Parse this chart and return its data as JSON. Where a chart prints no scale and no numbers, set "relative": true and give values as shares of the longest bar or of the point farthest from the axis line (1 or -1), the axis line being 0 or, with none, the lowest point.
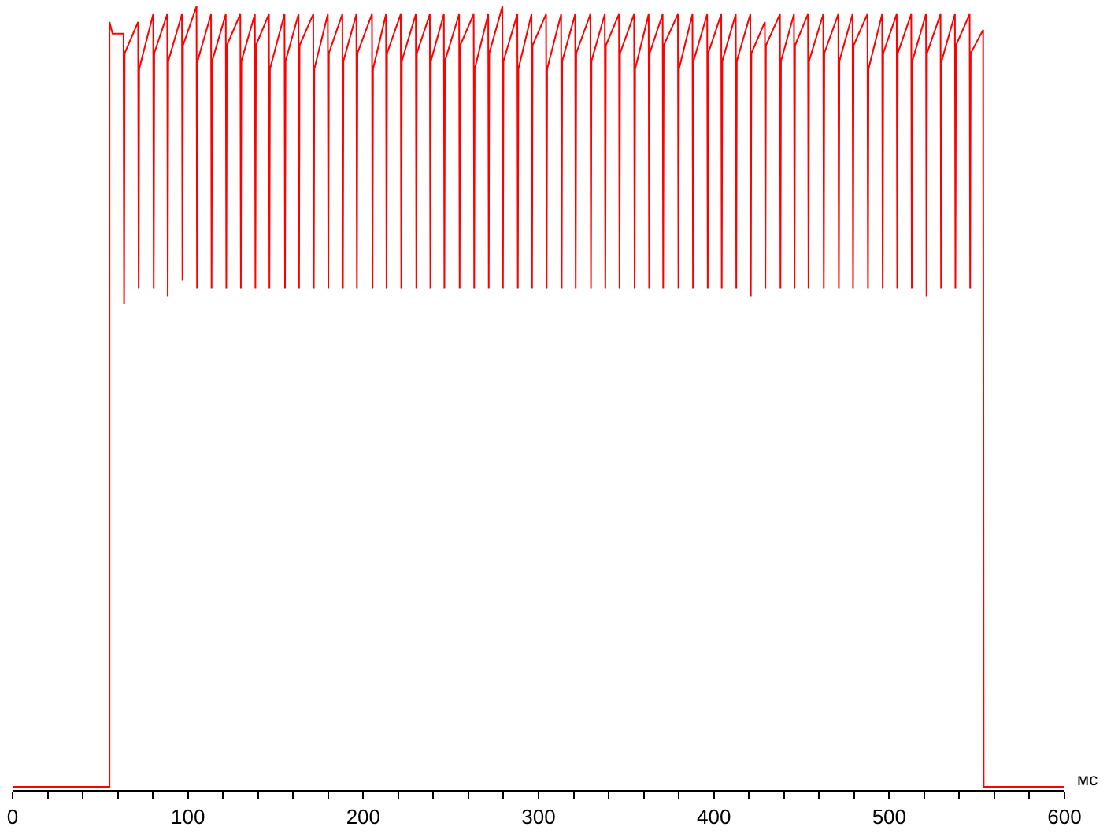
{
  "chart_data": {
    "type": "line",
    "relative": true,
    "xlabel": "мс",
    "xlim": [
      0,
      600
    ],
    "xticks": [
      0,
      {
        "value": 20,
        "label": null
      },
      {
        "value": 40,
        "label": null
      },
      {
        "value": 60,
        "label": null
      },
      {
        "value": 80,
        "label": null
      },
      100,
      {
        "value": 120,
        "label": null
      },
      {
        "value": 140,
        "label": null
      },
      {
        "value": 160,
        "label": null
      },
      {
        "value": 180,
        "label": null
      },
      200,
      {
        "value": 220,
        "label": null
      },
      {
        "value": 240,
        "label": null
      },
      {
        "value": 260,
        "label": null
      },
      {
        "value": 280,
        "label": null
      },
      300,
      {
        "value": 320,
        "label": null
      },
      {
        "value": 340,
        "label": null
      },
      {
        "value": 360,
        "label": null
      },
      {
        "value": 380,
        "label": null
      },
      400,
      {
        "value": 420,
        "label": null
      },
      {
        "value": 440,
        "label": null
      },
      {
        "value": 460,
        "label": null
      },
      {
        "value": 480,
        "label": null
      },
      500,
      {
        "value": 520,
        "label": null
      },
      {
        "value": 540,
        "label": null
      },
      {
        "value": 560,
        "label": null
      },
      {
        "value": 580,
        "label": null
      },
      600
    ],
    "grid": false,
    "marker": "none",
    "line_style": "solid",
    "x": [
      0,
      55.3,
      55.3,
      57.0,
      63.3,
      63.6,
      63.9,
      71.6,
      71.9,
      72.2,
      80.2,
      80.5,
      80.8,
      88.2,
      88.5,
      88.8,
      96.6,
      96.9,
      97.2,
      104.9,
      105.2,
      105.5,
      113.2,
      113.5,
      113.8,
      121.6,
      121.9,
      122.2,
      129.9,
      130.2,
      130.5,
      138.2,
      138.5,
      138.8,
      146.2,
      146.5,
      146.8,
      155.1,
      155.4,
      155.7,
      163.1,
      163.4,
      163.7,
      171.5,
      171.8,
      172.1,
      179.8,
      180.1,
      180.4,
      188.1,
      188.4,
      188.7,
      196.1,
      196.4,
      196.7,
      205.0,
      205.3,
      205.6,
      213.0,
      213.3,
      213.6,
      221.4,
      221.7,
      222.0,
      230.0,
      230.3,
      230.6,
      238.0,
      238.3,
      238.6,
      246.0,
      246.3,
      246.6,
      254.7,
      255.0,
      255.3,
      263.0,
      263.3,
      263.6,
      271.3,
      271.6,
      271.9,
      279.4,
      279.7,
      280.0,
      287.9,
      288.2,
      288.5,
      296.0,
      296.3,
      296.6,
      304.3,
      304.6,
      304.9,
      312.9,
      313.2,
      313.5,
      320.9,
      321.2,
      321.5,
      329.6,
      329.9,
      330.2,
      337.8,
      338.1,
      338.4,
      345.9,
      346.2,
      346.5,
      354.5,
      354.8,
      355.1,
      362.8,
      363.1,
      363.4,
      370.8,
      371.1,
      371.4,
      379.5,
      379.8,
      380.1,
      387.8,
      388.1,
      388.4,
      396.2,
      396.5,
      396.8,
      404.2,
      404.5,
      404.8,
      412.5,
      412.8,
      413.1,
      420.8,
      421.1,
      421.4,
      429.1,
      429.4,
      429.7,
      437.7,
      438.0,
      438.3,
      445.7,
      446.0,
      446.3,
      453.7,
      454.0,
      454.3,
      462.4,
      462.7,
      463.0,
      471.0,
      471.3,
      471.6,
      479.1,
      479.4,
      479.7,
      487.6,
      487.9,
      488.2,
      496.0,
      496.3,
      496.6,
      504.3,
      504.6,
      504.9,
      512.6,
      512.9,
      513.2,
      521.0,
      521.3,
      521.6,
      529.3,
      529.6,
      529.9,
      537.5,
      537.8,
      538.1,
      545.9,
      546.2,
      546.5,
      553.6,
      553.9,
      556.0,
      600
    ],
    "series": [
      {
        "color": "#ff0000",
        "values": [
          0.004,
          0.004,
          0.98,
          0.965,
          0.965,
          0.62,
          0.94,
          0.98,
          0.64,
          0.92,
          0.99,
          0.64,
          0.94,
          0.99,
          0.63,
          0.93,
          0.99,
          0.65,
          0.95,
          1.0,
          0.64,
          0.93,
          0.99,
          0.64,
          0.93,
          0.99,
          0.64,
          0.95,
          0.99,
          0.64,
          0.93,
          0.99,
          0.64,
          0.95,
          0.99,
          0.64,
          0.92,
          0.99,
          0.64,
          0.93,
          0.99,
          0.64,
          0.95,
          0.99,
          0.64,
          0.92,
          0.99,
          0.64,
          0.94,
          0.99,
          0.64,
          0.93,
          0.99,
          0.64,
          0.94,
          0.99,
          0.64,
          0.92,
          0.99,
          0.64,
          0.94,
          0.99,
          0.64,
          0.93,
          0.99,
          0.64,
          0.94,
          0.99,
          0.64,
          0.93,
          0.99,
          0.64,
          0.93,
          0.99,
          0.64,
          0.95,
          0.99,
          0.64,
          0.92,
          0.99,
          0.64,
          0.94,
          1.0,
          0.64,
          0.93,
          0.99,
          0.64,
          0.92,
          0.99,
          0.64,
          0.95,
          0.99,
          0.64,
          0.92,
          0.99,
          0.64,
          0.93,
          0.99,
          0.64,
          0.94,
          0.99,
          0.64,
          0.93,
          0.99,
          0.64,
          0.95,
          0.99,
          0.64,
          0.94,
          0.99,
          0.64,
          0.92,
          0.99,
          0.64,
          0.94,
          0.99,
          0.64,
          0.95,
          0.99,
          0.64,
          0.92,
          0.99,
          0.64,
          0.93,
          0.99,
          0.64,
          0.94,
          0.99,
          0.64,
          0.93,
          0.99,
          0.64,
          0.93,
          0.99,
          0.63,
          0.94,
          0.98,
          0.64,
          0.95,
          0.99,
          0.64,
          0.93,
          0.99,
          0.64,
          0.95,
          0.99,
          0.64,
          0.93,
          0.99,
          0.64,
          0.94,
          0.99,
          0.64,
          0.93,
          0.99,
          0.64,
          0.95,
          0.99,
          0.64,
          0.92,
          0.99,
          0.64,
          0.94,
          0.99,
          0.64,
          0.94,
          0.99,
          0.64,
          0.93,
          0.99,
          0.63,
          0.94,
          0.99,
          0.64,
          0.93,
          0.99,
          0.64,
          0.95,
          0.99,
          0.64,
          0.94,
          0.97,
          0.004,
          0.004,
          0.004
        ]
      }
    ]
  }
}
